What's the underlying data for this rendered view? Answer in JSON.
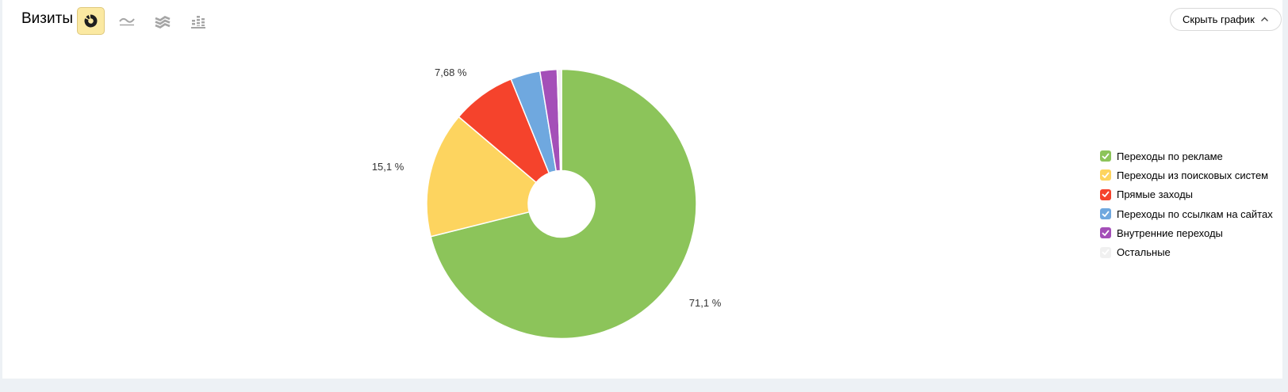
{
  "header": {
    "title": "Визиты",
    "hide_chart_label": "Скрыть график",
    "chart_type_icons": [
      "pie-chart",
      "line-chart",
      "stacked-area",
      "columns"
    ],
    "selected_chart_type": "pie-chart"
  },
  "accent_colors": {
    "selected_button_bg": "#fbe9a2",
    "selected_button_border": "#dfc97e",
    "page_background": "#edf1f5"
  },
  "chart_data": {
    "type": "pie",
    "title": "Визиты",
    "donut": true,
    "legend_position": "right",
    "unit": "%",
    "start_angle_deg": 0,
    "direction": "clockwise",
    "slices": [
      {
        "label": "Переходы по рекламе",
        "value": 71.1,
        "display": "71,1 %",
        "color": "#8cc45a"
      },
      {
        "label": "Переходы из поисковых систем",
        "value": 15.1,
        "display": "15,1 %",
        "color": "#fdd45f"
      },
      {
        "label": "Прямые заходы",
        "value": 7.68,
        "display": "7,68 %",
        "color": "#f5432c"
      },
      {
        "label": "Переходы по ссылкам на сайтах",
        "value": 3.55,
        "display": "",
        "color": "#6fa8df"
      },
      {
        "label": "Внутренние переходы",
        "value": 2.05,
        "display": "",
        "color": "#a44fb8"
      },
      {
        "label": "Остальные",
        "value": 0.52,
        "display": "",
        "color": "#f0f0f0"
      }
    ]
  },
  "legend": {
    "items": [
      {
        "label": "Переходы по рекламе",
        "color": "#8cc45a",
        "checked": true
      },
      {
        "label": "Переходы из поисковых систем",
        "color": "#fdd45f",
        "checked": true
      },
      {
        "label": "Прямые заходы",
        "color": "#f5432c",
        "checked": true
      },
      {
        "label": "Переходы по ссылкам на сайтах",
        "color": "#6fa8df",
        "checked": true
      },
      {
        "label": "Внутренние переходы",
        "color": "#a44fb8",
        "checked": true
      },
      {
        "label": "Остальные",
        "color": "#f0f0f0",
        "checked": true
      }
    ]
  }
}
